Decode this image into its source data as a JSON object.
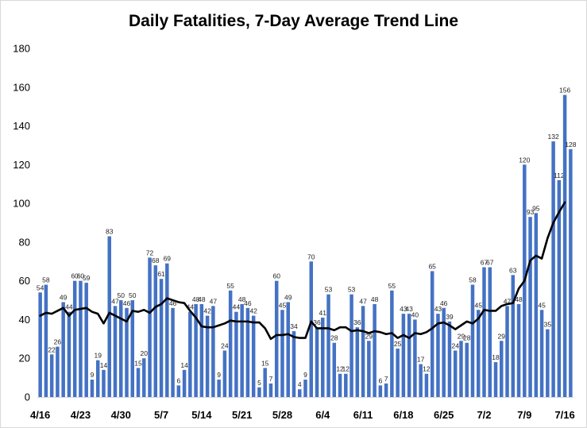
{
  "chart_data": {
    "type": "bar",
    "title": "Daily Fatalities, 7-Day Average Trend Line",
    "xlabel": "",
    "ylabel": "",
    "ylim": [
      0,
      180
    ],
    "yticks": [
      0,
      20,
      40,
      60,
      80,
      100,
      120,
      140,
      160,
      180
    ],
    "grid": false,
    "bar_color": "#4472c4",
    "line_color": "#000000",
    "x_tick_labels": [
      {
        "index": 0,
        "label": "4/16"
      },
      {
        "index": 7,
        "label": "4/23"
      },
      {
        "index": 14,
        "label": "4/30"
      },
      {
        "index": 21,
        "label": "5/7"
      },
      {
        "index": 28,
        "label": "5/14"
      },
      {
        "index": 35,
        "label": "5/21"
      },
      {
        "index": 42,
        "label": "5/28"
      },
      {
        "index": 49,
        "label": "6/4"
      },
      {
        "index": 56,
        "label": "6/11"
      },
      {
        "index": 63,
        "label": "6/18"
      },
      {
        "index": 70,
        "label": "6/25"
      },
      {
        "index": 77,
        "label": "7/2"
      },
      {
        "index": 84,
        "label": "7/9"
      },
      {
        "index": 91,
        "label": "7/16"
      }
    ],
    "series": [
      {
        "type": "bar",
        "values": [
          54,
          58,
          22,
          26,
          49,
          44,
          60,
          60,
          59,
          9,
          19,
          14,
          83,
          47,
          50,
          46,
          50,
          15,
          20,
          72,
          68,
          61,
          69,
          46,
          6,
          14,
          44,
          48,
          48,
          42,
          47,
          9,
          24,
          55,
          44,
          48,
          46,
          42,
          5,
          15,
          7,
          60,
          45,
          49,
          34,
          4,
          9,
          70,
          36,
          41,
          53,
          28,
          12,
          12,
          53,
          36,
          47,
          29,
          48,
          6,
          7,
          55,
          25,
          43,
          43,
          40,
          17,
          12,
          65,
          43,
          46,
          39,
          24,
          29,
          28,
          58,
          45,
          67,
          67,
          18,
          29,
          47,
          63,
          48,
          120,
          93,
          95,
          45,
          35,
          132,
          112,
          156,
          128
        ]
      },
      {
        "type": "line",
        "values": [
          42,
          43.5,
          43,
          44.5,
          46,
          42,
          45,
          45.5,
          46,
          44,
          43,
          38,
          43.5,
          42,
          40.5,
          39,
          44.5,
          44,
          45,
          43.5,
          46.5,
          48,
          51,
          50,
          49,
          48.5,
          44.5,
          41,
          36.5,
          36,
          36,
          37,
          38,
          39.5,
          39,
          39,
          39,
          38.5,
          38.5,
          35.5,
          30,
          32,
          32,
          32.5,
          31,
          30.5,
          30.5,
          39,
          35.5,
          35.5,
          35.5,
          34.5,
          36,
          36,
          34,
          34.5,
          34,
          33,
          34,
          33.5,
          32.5,
          33,
          30.5,
          32,
          30.5,
          33,
          32.5,
          33.5,
          35.5,
          38,
          38.5,
          37,
          35,
          37,
          39,
          38,
          40.5,
          45,
          44.5,
          44.5,
          47,
          48,
          48.5,
          56,
          60,
          70.5,
          73,
          71.5,
          82,
          90,
          95.5,
          100.5
        ]
      }
    ]
  }
}
